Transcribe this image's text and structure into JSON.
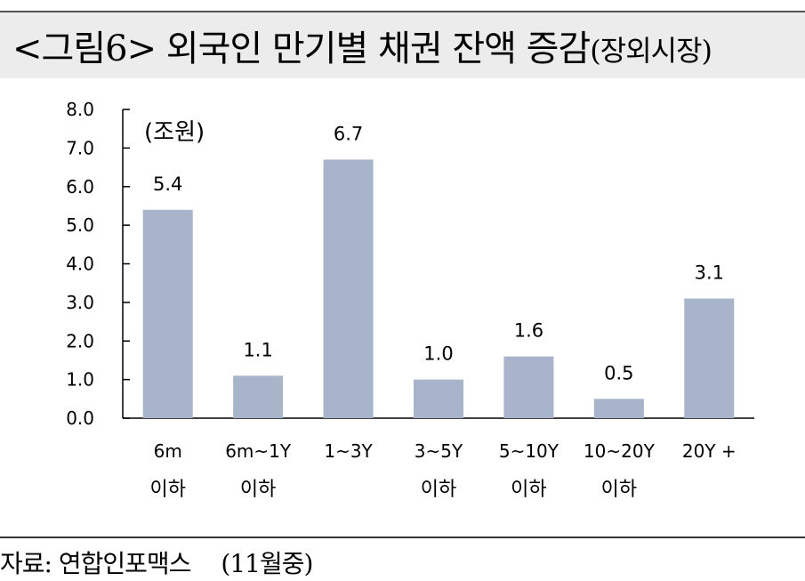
{
  "header": {
    "title": "<그림6> 외국인 만기별 채권 잔액 증감",
    "subtitle": "(장외시장)"
  },
  "chart_data": {
    "type": "bar",
    "unit_label": "(조원)",
    "categories": [
      [
        "6m",
        "이하"
      ],
      [
        "6m~1Y",
        "이하"
      ],
      [
        "1~3Y",
        ""
      ],
      [
        "3~5Y",
        "이하"
      ],
      [
        "5~10Y",
        "이하"
      ],
      [
        "10~20Y",
        "이하"
      ],
      [
        "20Y +",
        ""
      ]
    ],
    "values": [
      5.4,
      1.1,
      6.7,
      1.0,
      1.6,
      0.5,
      3.1
    ],
    "data_labels": [
      "5.4",
      "1.1",
      "6.7",
      "1.0",
      "1.6",
      "0.5",
      "3.1"
    ],
    "ylim": [
      0,
      8
    ],
    "yticks": [
      "0.0",
      "1.0",
      "2.0",
      "3.0",
      "4.0",
      "5.0",
      "6.0",
      "7.0",
      "8.0"
    ],
    "bar_color": "#a7b4c9",
    "grid": false
  },
  "footer": {
    "source": "자료: 연합인포맥스",
    "note": "(11월중)"
  }
}
